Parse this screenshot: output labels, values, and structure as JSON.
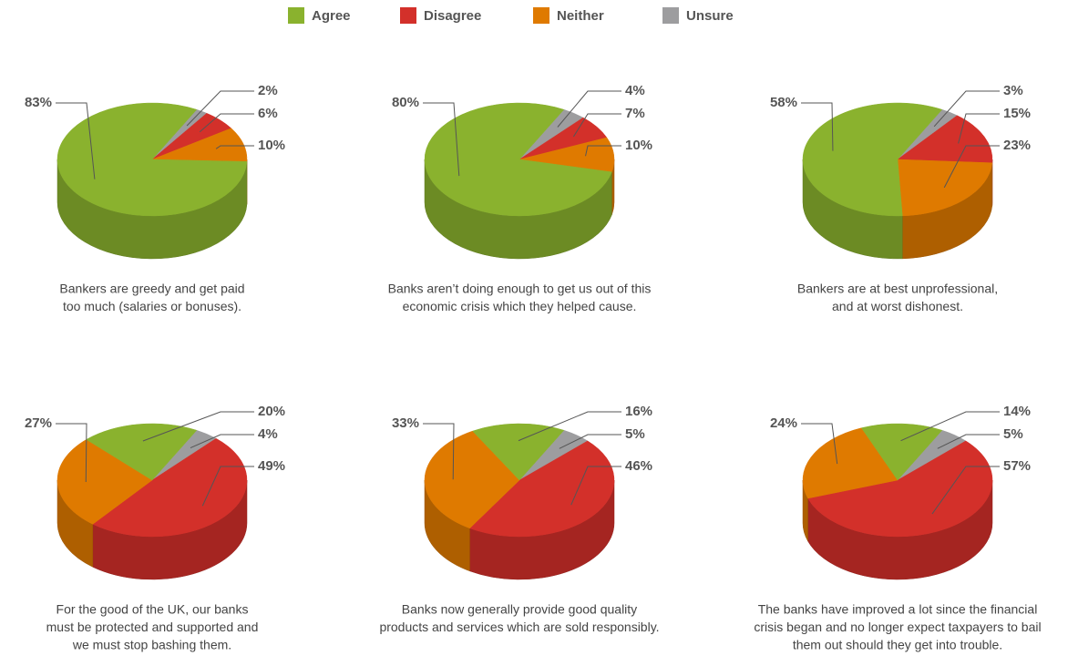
{
  "legend": {
    "entries": [
      {
        "name": "Agree",
        "color": "#8ab22e"
      },
      {
        "name": "Disagree",
        "color": "#d3302a"
      },
      {
        "name": "Neither",
        "color": "#df7a00"
      },
      {
        "name": "Unsure",
        "color": "#9d9d9f"
      }
    ]
  },
  "chart_data": [
    {
      "type": "pie",
      "title": [
        "Bankers are greedy and get paid",
        "too much (salaries or bonuses)."
      ],
      "values": [
        83,
        6,
        10,
        2
      ],
      "value_labels": [
        "83%",
        "6%",
        "10%",
        "2%"
      ]
    },
    {
      "type": "pie",
      "title": [
        "Banks aren’t doing enough to get us out of this",
        "economic crisis which they helped cause."
      ],
      "values": [
        80,
        7,
        10,
        4
      ],
      "value_labels": [
        "80%",
        "7%",
        "10%",
        "4%"
      ]
    },
    {
      "type": "pie",
      "title": [
        "Bankers are at best unprofessional,",
        "and at worst dishonest."
      ],
      "values": [
        58,
        15,
        23,
        3
      ],
      "value_labels": [
        "58%",
        "15%",
        "23%",
        "3%"
      ]
    },
    {
      "type": "pie",
      "title": [
        "For the good of the UK, our banks",
        "must be protected and supported and",
        "we must stop bashing them."
      ],
      "values": [
        20,
        49,
        27,
        4
      ],
      "value_labels": [
        "20%",
        "49%",
        "27%",
        "4%"
      ]
    },
    {
      "type": "pie",
      "title": [
        "Banks now generally provide good quality",
        "products and services which are sold responsibly."
      ],
      "values": [
        16,
        46,
        33,
        5
      ],
      "value_labels": [
        "16%",
        "46%",
        "33%",
        "5%"
      ]
    },
    {
      "type": "pie",
      "title": [
        "The banks have improved a lot since the financial",
        "crisis began and no longer expect taxpayers to bail",
        "them out should they get into trouble."
      ],
      "values": [
        14,
        57,
        24,
        5
      ],
      "value_labels": [
        "14%",
        "57%",
        "24%",
        "5%"
      ]
    }
  ]
}
